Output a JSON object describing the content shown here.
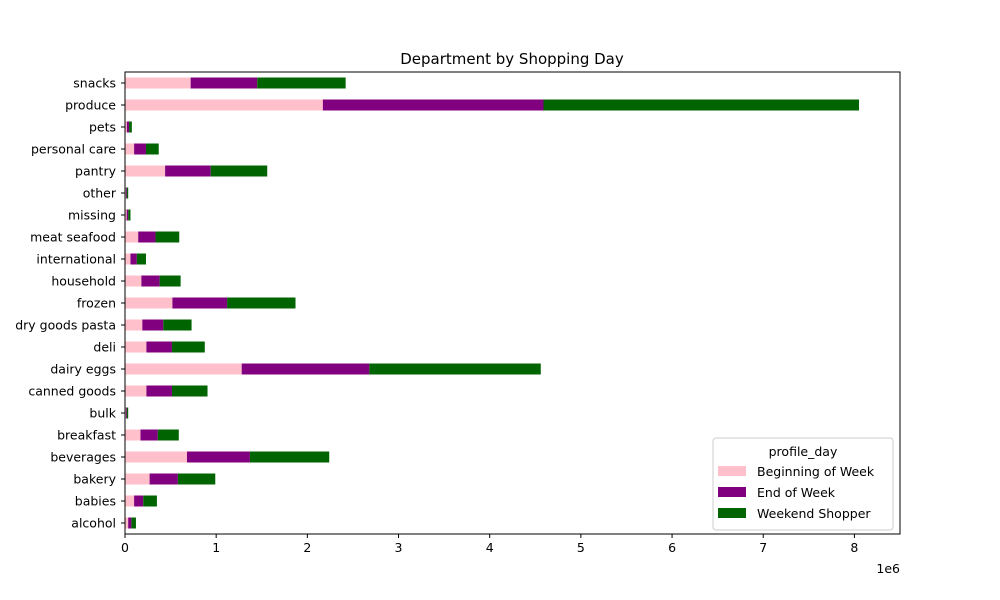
{
  "chart_data": {
    "type": "bar",
    "orientation": "horizontal",
    "stacked": true,
    "title": "Department by Shopping Day",
    "xlabel": "",
    "ylabel": "",
    "x_scale_label": "1e6",
    "xlim": [
      0,
      8500000
    ],
    "x_ticks": [
      0,
      1000000,
      2000000,
      3000000,
      4000000,
      5000000,
      6000000,
      7000000,
      8000000
    ],
    "x_tick_labels": [
      "0",
      "1",
      "2",
      "3",
      "4",
      "5",
      "6",
      "7",
      "8"
    ],
    "grid": false,
    "legend": {
      "title": "profile_day",
      "position": "lower-right"
    },
    "categories": [
      "alcohol",
      "babies",
      "bakery",
      "beverages",
      "breakfast",
      "bulk",
      "canned goods",
      "dairy eggs",
      "deli",
      "dry goods pasta",
      "frozen",
      "household",
      "international",
      "meat seafood",
      "missing",
      "other",
      "pantry",
      "personal care",
      "pets",
      "produce",
      "snacks"
    ],
    "series": [
      {
        "name": "Beginning of Week",
        "color": "#ffc0cb",
        "values": [
          35000,
          100000,
          270000,
          680000,
          170000,
          10000,
          235000,
          1280000,
          235000,
          190000,
          520000,
          180000,
          60000,
          145000,
          18000,
          10000,
          440000,
          100000,
          20000,
          2170000,
          720000
        ]
      },
      {
        "name": "End of Week",
        "color": "#800080",
        "values": [
          35000,
          100000,
          310000,
          690000,
          190000,
          10000,
          280000,
          1400000,
          280000,
          230000,
          600000,
          200000,
          70000,
          190000,
          18000,
          10000,
          500000,
          130000,
          25000,
          2420000,
          730000
        ]
      },
      {
        "name": "Weekend Shopper",
        "color": "#006400",
        "values": [
          50000,
          150000,
          410000,
          870000,
          230000,
          15000,
          390000,
          1880000,
          360000,
          310000,
          750000,
          230000,
          100000,
          260000,
          24000,
          15000,
          620000,
          140000,
          30000,
          3460000,
          970000
        ]
      }
    ]
  }
}
